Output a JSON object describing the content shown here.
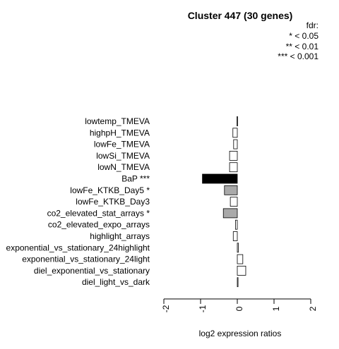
{
  "chart_data": {
    "type": "bar",
    "orientation": "horizontal",
    "title": "Cluster 447 (30 genes)",
    "xlabel": "log2 expression ratios",
    "ylabel": "",
    "xlim": [
      -2,
      2
    ],
    "xticks": [
      "-2",
      "-1",
      "0",
      "1",
      "2"
    ],
    "legend": {
      "placement": "top-right",
      "lines": [
        "fdr:",
        "* < 0.05",
        "** < 0.01",
        "*** < 0.001"
      ]
    },
    "categories": [
      "lowtemp_TMEVA",
      "highpH_TMEVA",
      "lowFe_TMEVA",
      "lowSi_TMEVA",
      "lowN_TMEVA",
      "BaP ***",
      "lowFe_KTKB_Day5 *",
      "lowFe_KTKB_Day3",
      "co2_elevated_stat_arrays *",
      "co2_elevated_expo_arrays",
      "highlight_arrays",
      "exponential_vs_stationary_24highlight",
      "exponential_vs_stationary_24light",
      "diel_exponential_vs_stationary",
      "diel_light_vs_dark"
    ],
    "values": [
      -0.01,
      -0.12,
      -0.1,
      -0.21,
      -0.21,
      -0.95,
      -0.35,
      -0.19,
      -0.38,
      -0.05,
      -0.11,
      0.03,
      0.15,
      0.23,
      0.02
    ],
    "significance": [
      "",
      "",
      "",
      "",
      "",
      "***",
      "*",
      "",
      "*",
      "",
      "",
      "",
      "",
      "",
      ""
    ],
    "colors": {
      "none": "#ffffff",
      "*": "#a9a9a9",
      "***": "#000000",
      "stroke": "#000000"
    },
    "grid": false
  }
}
